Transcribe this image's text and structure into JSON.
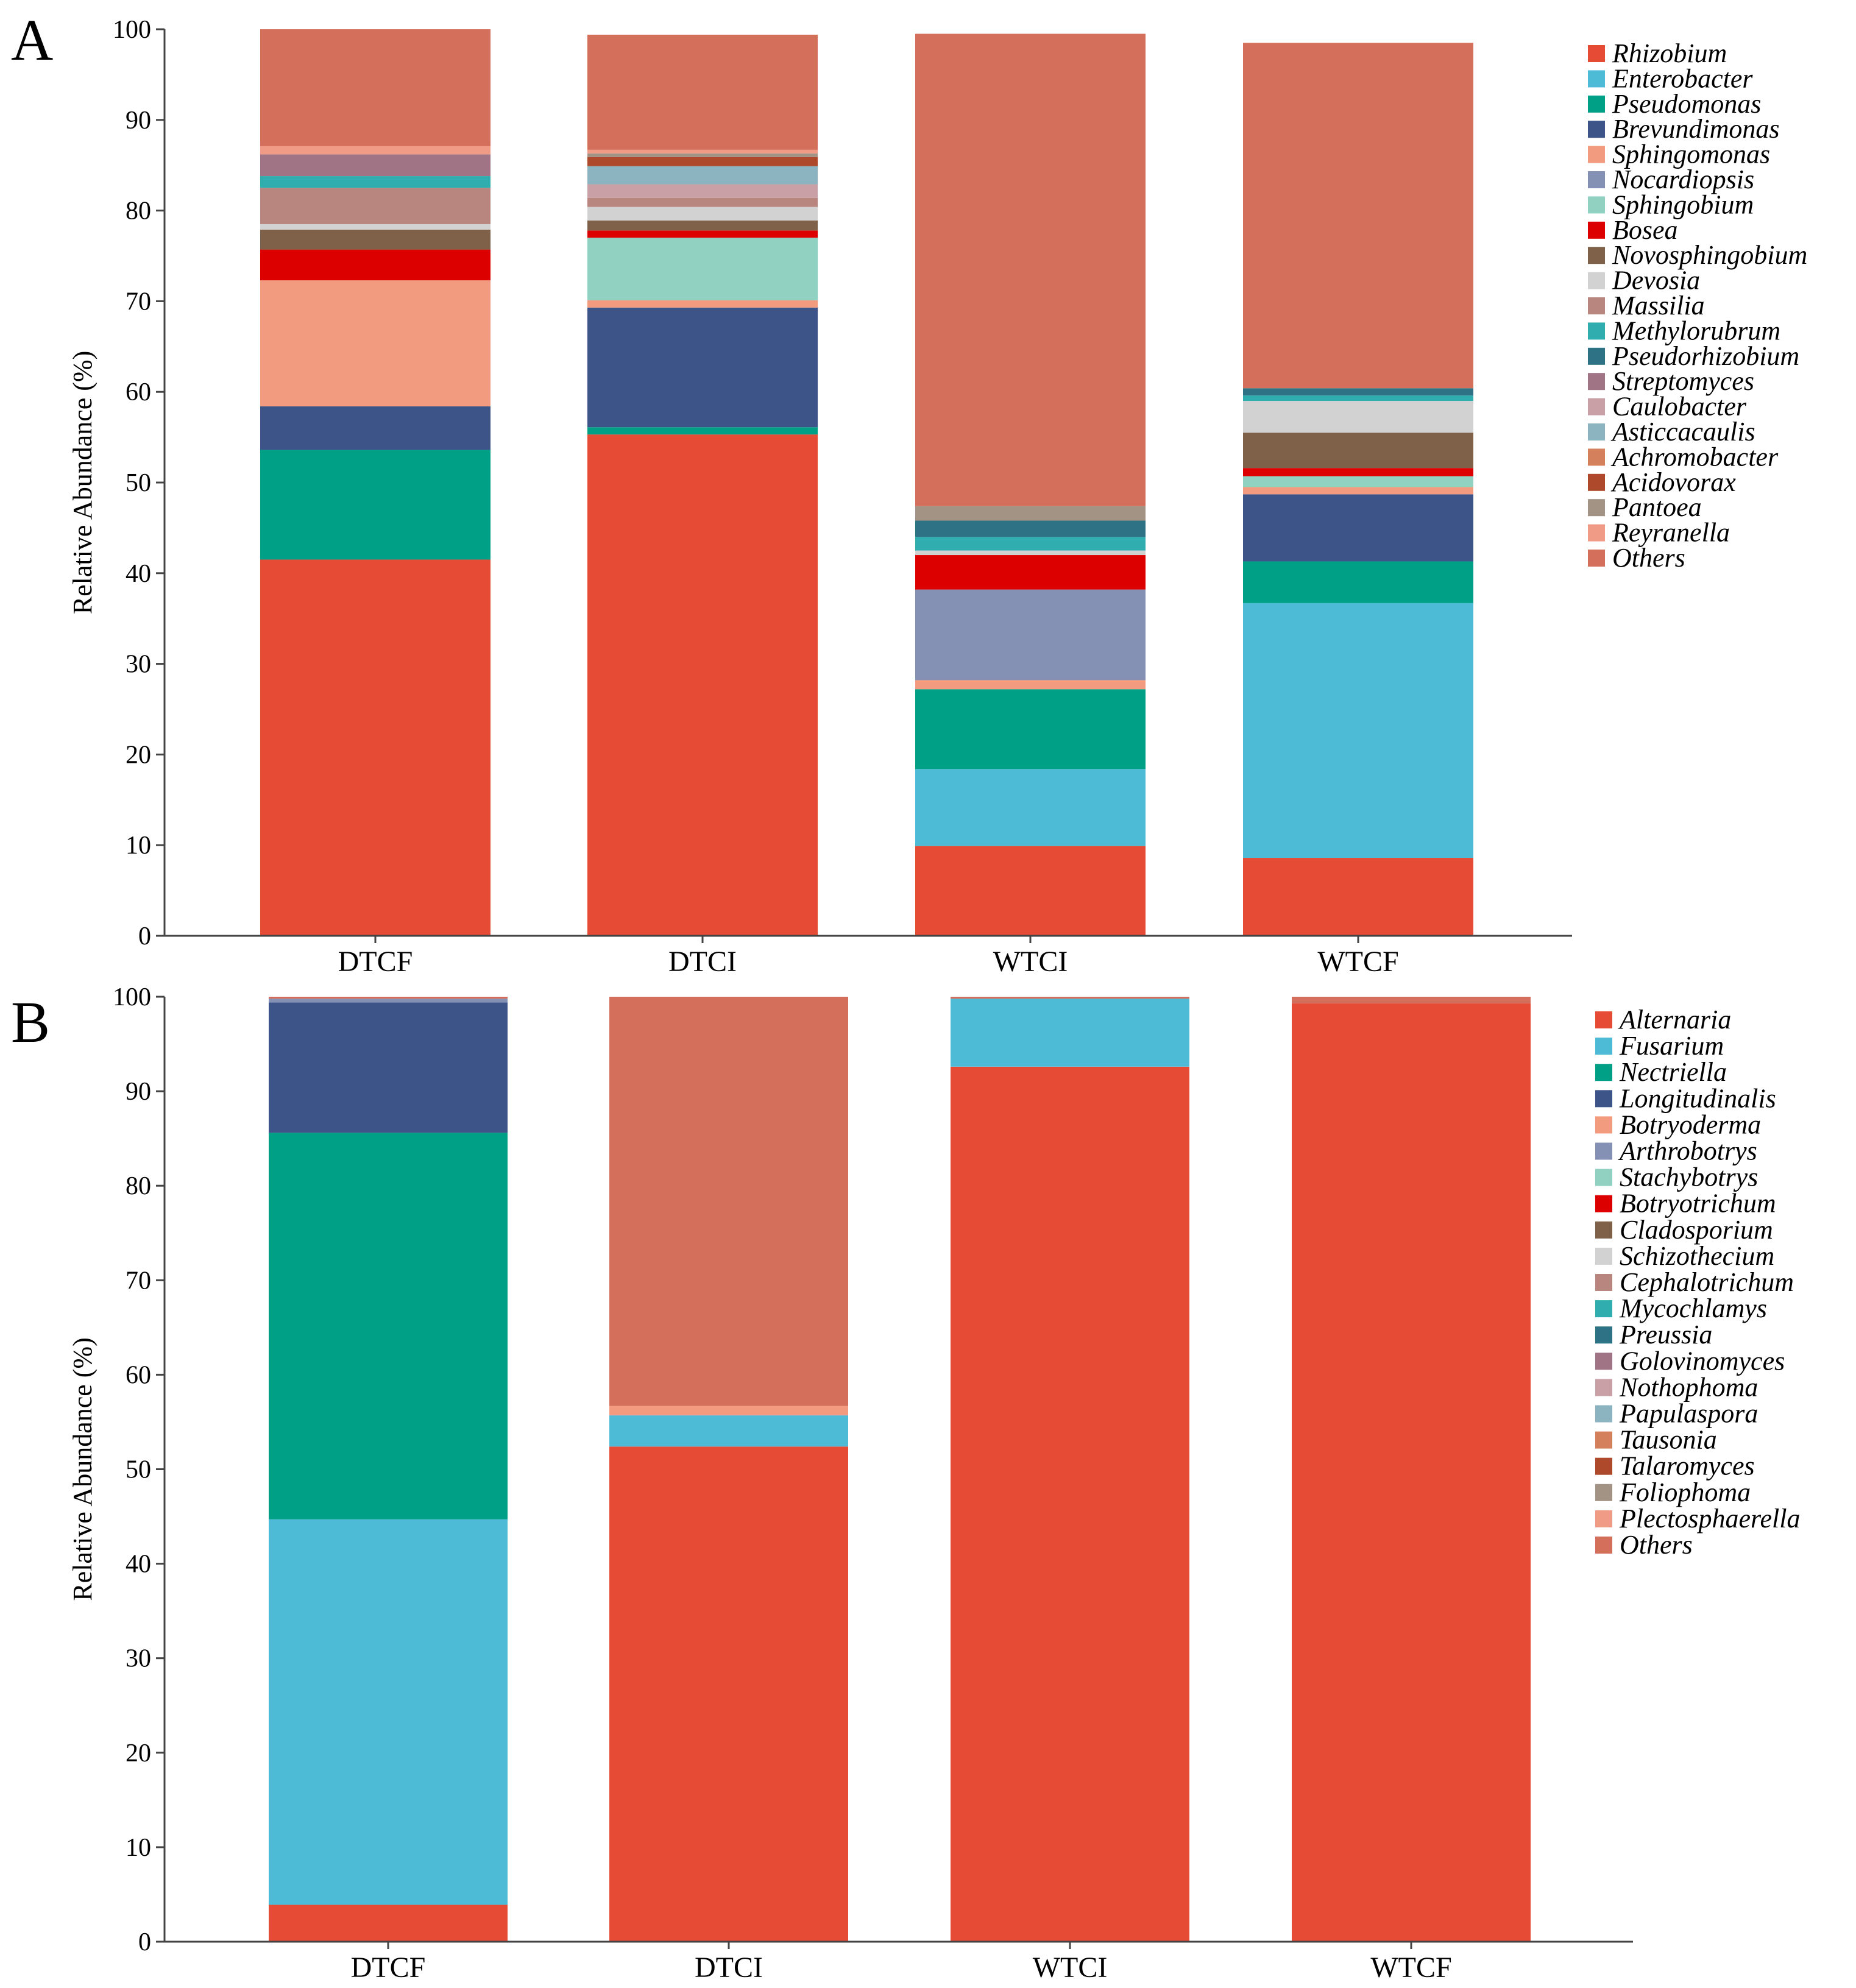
{
  "chart_data": [
    {
      "type": "bar",
      "stacked": true,
      "panel_label": "A",
      "title": "",
      "xlabel": "",
      "ylabel": "Relative Abundance (%)",
      "ylim": [
        0,
        100
      ],
      "yticks": [
        0,
        10,
        20,
        30,
        40,
        50,
        60,
        70,
        80,
        90,
        100
      ],
      "categories": [
        "DTCF",
        "DTCI",
        "WTCI",
        "WTCF"
      ],
      "legend_position": "right",
      "series": [
        {
          "name": "Rhizobium",
          "color": "#E64B35",
          "values": [
            41.5,
            55.3,
            9.9,
            8.6
          ]
        },
        {
          "name": "Enterobacter",
          "color": "#4DBBD5",
          "values": [
            0,
            0,
            8.5,
            28.1
          ]
        },
        {
          "name": "Pseudomonas",
          "color": "#00A087",
          "values": [
            12.1,
            0.8,
            8.8,
            4.6
          ]
        },
        {
          "name": "Brevundimonas",
          "color": "#3C5488",
          "values": [
            4.8,
            13.2,
            0,
            7.4
          ]
        },
        {
          "name": "Sphingomonas",
          "color": "#F39B7F",
          "values": [
            13.9,
            0.8,
            1.0,
            0.8
          ]
        },
        {
          "name": "Nocardiopsis",
          "color": "#8491B4",
          "values": [
            0,
            0,
            10.0,
            0
          ]
        },
        {
          "name": "Sphingobium",
          "color": "#91D1C2",
          "values": [
            0,
            6.9,
            0,
            1.2
          ]
        },
        {
          "name": "Bosea",
          "color": "#DC0000",
          "values": [
            3.4,
            0.8,
            3.8,
            0.9
          ]
        },
        {
          "name": "Novosphingobium",
          "color": "#7E6148",
          "values": [
            2.2,
            1.1,
            0,
            3.9
          ]
        },
        {
          "name": "Devosia",
          "color": "#D2D2D2",
          "values": [
            0.6,
            1.5,
            0.5,
            3.5
          ]
        },
        {
          "name": "Massilia",
          "color": "#B8857F",
          "values": [
            4.0,
            1.0,
            0,
            0
          ]
        },
        {
          "name": "Methylorubrum",
          "color": "#30ADAF",
          "values": [
            1.3,
            0,
            1.5,
            0.6
          ]
        },
        {
          "name": "Pseudorhizobium",
          "color": "#2E7385",
          "values": [
            0,
            0,
            1.8,
            0.8
          ]
        },
        {
          "name": "Streptomyces",
          "color": "#A07385",
          "values": [
            2.4,
            0,
            0,
            0
          ]
        },
        {
          "name": "Caulobacter",
          "color": "#C9A0A6",
          "values": [
            0,
            1.5,
            0,
            0
          ]
        },
        {
          "name": "Asticcacaulis",
          "color": "#8CB3C0",
          "values": [
            0,
            2.0,
            0,
            0
          ]
        },
        {
          "name": "Achromobacter",
          "color": "#D5805C",
          "values": [
            0,
            0,
            0,
            0
          ]
        },
        {
          "name": "Acidovorax",
          "color": "#AE4A2B",
          "values": [
            0,
            1.0,
            0,
            0
          ]
        },
        {
          "name": "Pantoea",
          "color": "#A39385",
          "values": [
            0,
            0.4,
            1.6,
            0
          ]
        },
        {
          "name": "Reyranella",
          "color": "#EF9B86",
          "values": [
            0.9,
            0.4,
            0,
            0
          ]
        },
        {
          "name": "Others",
          "color": "#D46F5B",
          "values": [
            12.9,
            12.7,
            52.1,
            38.1
          ]
        }
      ]
    },
    {
      "type": "bar",
      "stacked": true,
      "panel_label": "B",
      "title": "",
      "xlabel": "",
      "ylabel": "Relative Abundance (%)",
      "ylim": [
        0,
        100
      ],
      "yticks": [
        0,
        10,
        20,
        30,
        40,
        50,
        60,
        70,
        80,
        90,
        100
      ],
      "categories": [
        "DTCF",
        "DTCI",
        "WTCI",
        "WTCF"
      ],
      "legend_position": "right",
      "series": [
        {
          "name": "Alternaria",
          "color": "#E64B35",
          "values": [
            3.9,
            52.4,
            92.6,
            99.3
          ]
        },
        {
          "name": "Fusarium",
          "color": "#4DBBD5",
          "values": [
            40.8,
            3.3,
            7.2,
            0
          ]
        },
        {
          "name": "Nectriella",
          "color": "#00A087",
          "values": [
            40.9,
            0,
            0,
            0
          ]
        },
        {
          "name": "Longitudinalis",
          "color": "#3C5488",
          "values": [
            13.8,
            0,
            0,
            0
          ]
        },
        {
          "name": "Botryoderma",
          "color": "#F39B7F",
          "values": [
            0,
            1.0,
            0,
            0
          ]
        },
        {
          "name": "Arthrobotrys",
          "color": "#8491B4",
          "values": [
            0.4,
            0,
            0,
            0
          ]
        },
        {
          "name": "Stachybotrys",
          "color": "#91D1C2",
          "values": [
            0,
            0,
            0,
            0
          ]
        },
        {
          "name": "Botryotrichum",
          "color": "#DC0000",
          "values": [
            0,
            0,
            0,
            0
          ]
        },
        {
          "name": "Cladosporium",
          "color": "#7E6148",
          "values": [
            0,
            0,
            0,
            0
          ]
        },
        {
          "name": "Schizothecium",
          "color": "#D2D2D2",
          "values": [
            0,
            0,
            0,
            0
          ]
        },
        {
          "name": "Cephalotrichum",
          "color": "#B8857F",
          "values": [
            0,
            0,
            0,
            0
          ]
        },
        {
          "name": "Mycochlamys",
          "color": "#30ADAF",
          "values": [
            0,
            0,
            0,
            0
          ]
        },
        {
          "name": "Preussia",
          "color": "#2E7385",
          "values": [
            0,
            0,
            0,
            0
          ]
        },
        {
          "name": "Golovinomyces",
          "color": "#A07385",
          "values": [
            0,
            0,
            0,
            0
          ]
        },
        {
          "name": "Nothophoma",
          "color": "#C9A0A6",
          "values": [
            0,
            0,
            0,
            0
          ]
        },
        {
          "name": "Papulaspora",
          "color": "#8CB3C0",
          "values": [
            0,
            0,
            0,
            0
          ]
        },
        {
          "name": "Tausonia",
          "color": "#D5805C",
          "values": [
            0,
            0,
            0,
            0
          ]
        },
        {
          "name": "Talaromyces",
          "color": "#AE4A2B",
          "values": [
            0,
            0,
            0,
            0
          ]
        },
        {
          "name": "Foliophoma",
          "color": "#A39385",
          "values": [
            0,
            0,
            0,
            0
          ]
        },
        {
          "name": "Plectosphaerella",
          "color": "#EF9B86",
          "values": [
            0,
            0,
            0,
            0
          ]
        },
        {
          "name": "Others",
          "color": "#D46F5B",
          "values": [
            0.2,
            43.3,
            0.2,
            0.7
          ]
        }
      ]
    }
  ]
}
